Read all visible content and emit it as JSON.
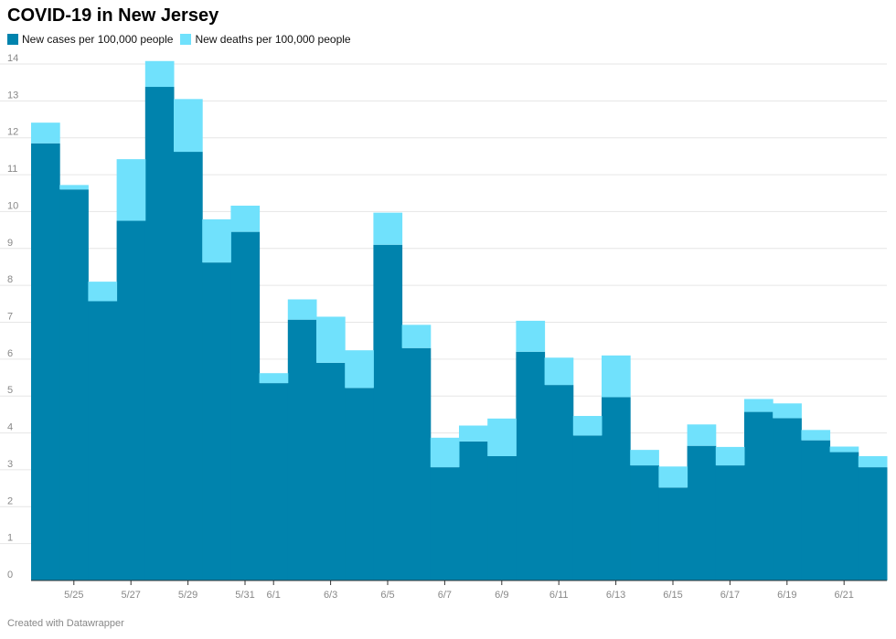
{
  "chart_data": {
    "type": "bar",
    "stacked": true,
    "title": "COVID-19 in New Jersey",
    "xlabel": "",
    "ylabel": "",
    "ylim": [
      0,
      14
    ],
    "yticks": [
      0,
      1,
      2,
      3,
      4,
      5,
      6,
      7,
      8,
      9,
      10,
      11,
      12,
      13,
      14
    ],
    "grid": true,
    "legend": "top-left",
    "categories": [
      "5/24",
      "5/25",
      "5/26",
      "5/27",
      "5/28",
      "5/29",
      "5/30",
      "5/31",
      "6/1",
      "6/2",
      "6/3",
      "6/4",
      "6/5",
      "6/6",
      "6/7",
      "6/8",
      "6/9",
      "6/10",
      "6/11",
      "6/12",
      "6/13",
      "6/14",
      "6/15",
      "6/16",
      "6/17",
      "6/18",
      "6/19",
      "6/20",
      "6/21",
      "6/22"
    ],
    "xtick_labels": [
      "5/25",
      "5/27",
      "5/29",
      "5/31",
      "6/1",
      "6/3",
      "6/5",
      "6/7",
      "6/9",
      "6/11",
      "6/13",
      "6/15",
      "6/17",
      "6/19",
      "6/21"
    ],
    "series": [
      {
        "name": "New cases per 100,000 people",
        "color": "#0083ad",
        "values": [
          11.85,
          10.6,
          7.57,
          9.75,
          13.38,
          11.62,
          8.62,
          9.45,
          5.35,
          7.07,
          5.9,
          5.22,
          9.1,
          6.3,
          3.07,
          3.77,
          3.37,
          6.2,
          5.3,
          3.93,
          4.97,
          3.12,
          2.52,
          3.65,
          3.12,
          4.57,
          4.4,
          3.8,
          3.48,
          3.07
        ]
      },
      {
        "name": "New deaths per 100,000 people",
        "color": "#70e1fc",
        "values": [
          0.56,
          0.12,
          0.53,
          1.67,
          0.7,
          1.43,
          1.17,
          0.71,
          0.27,
          0.55,
          1.25,
          1.02,
          0.87,
          0.63,
          0.8,
          0.43,
          1.02,
          0.84,
          0.74,
          0.53,
          1.13,
          0.42,
          0.57,
          0.58,
          0.5,
          0.35,
          0.4,
          0.28,
          0.15,
          0.3
        ]
      }
    ],
    "credit": "Created with Datawrapper"
  }
}
